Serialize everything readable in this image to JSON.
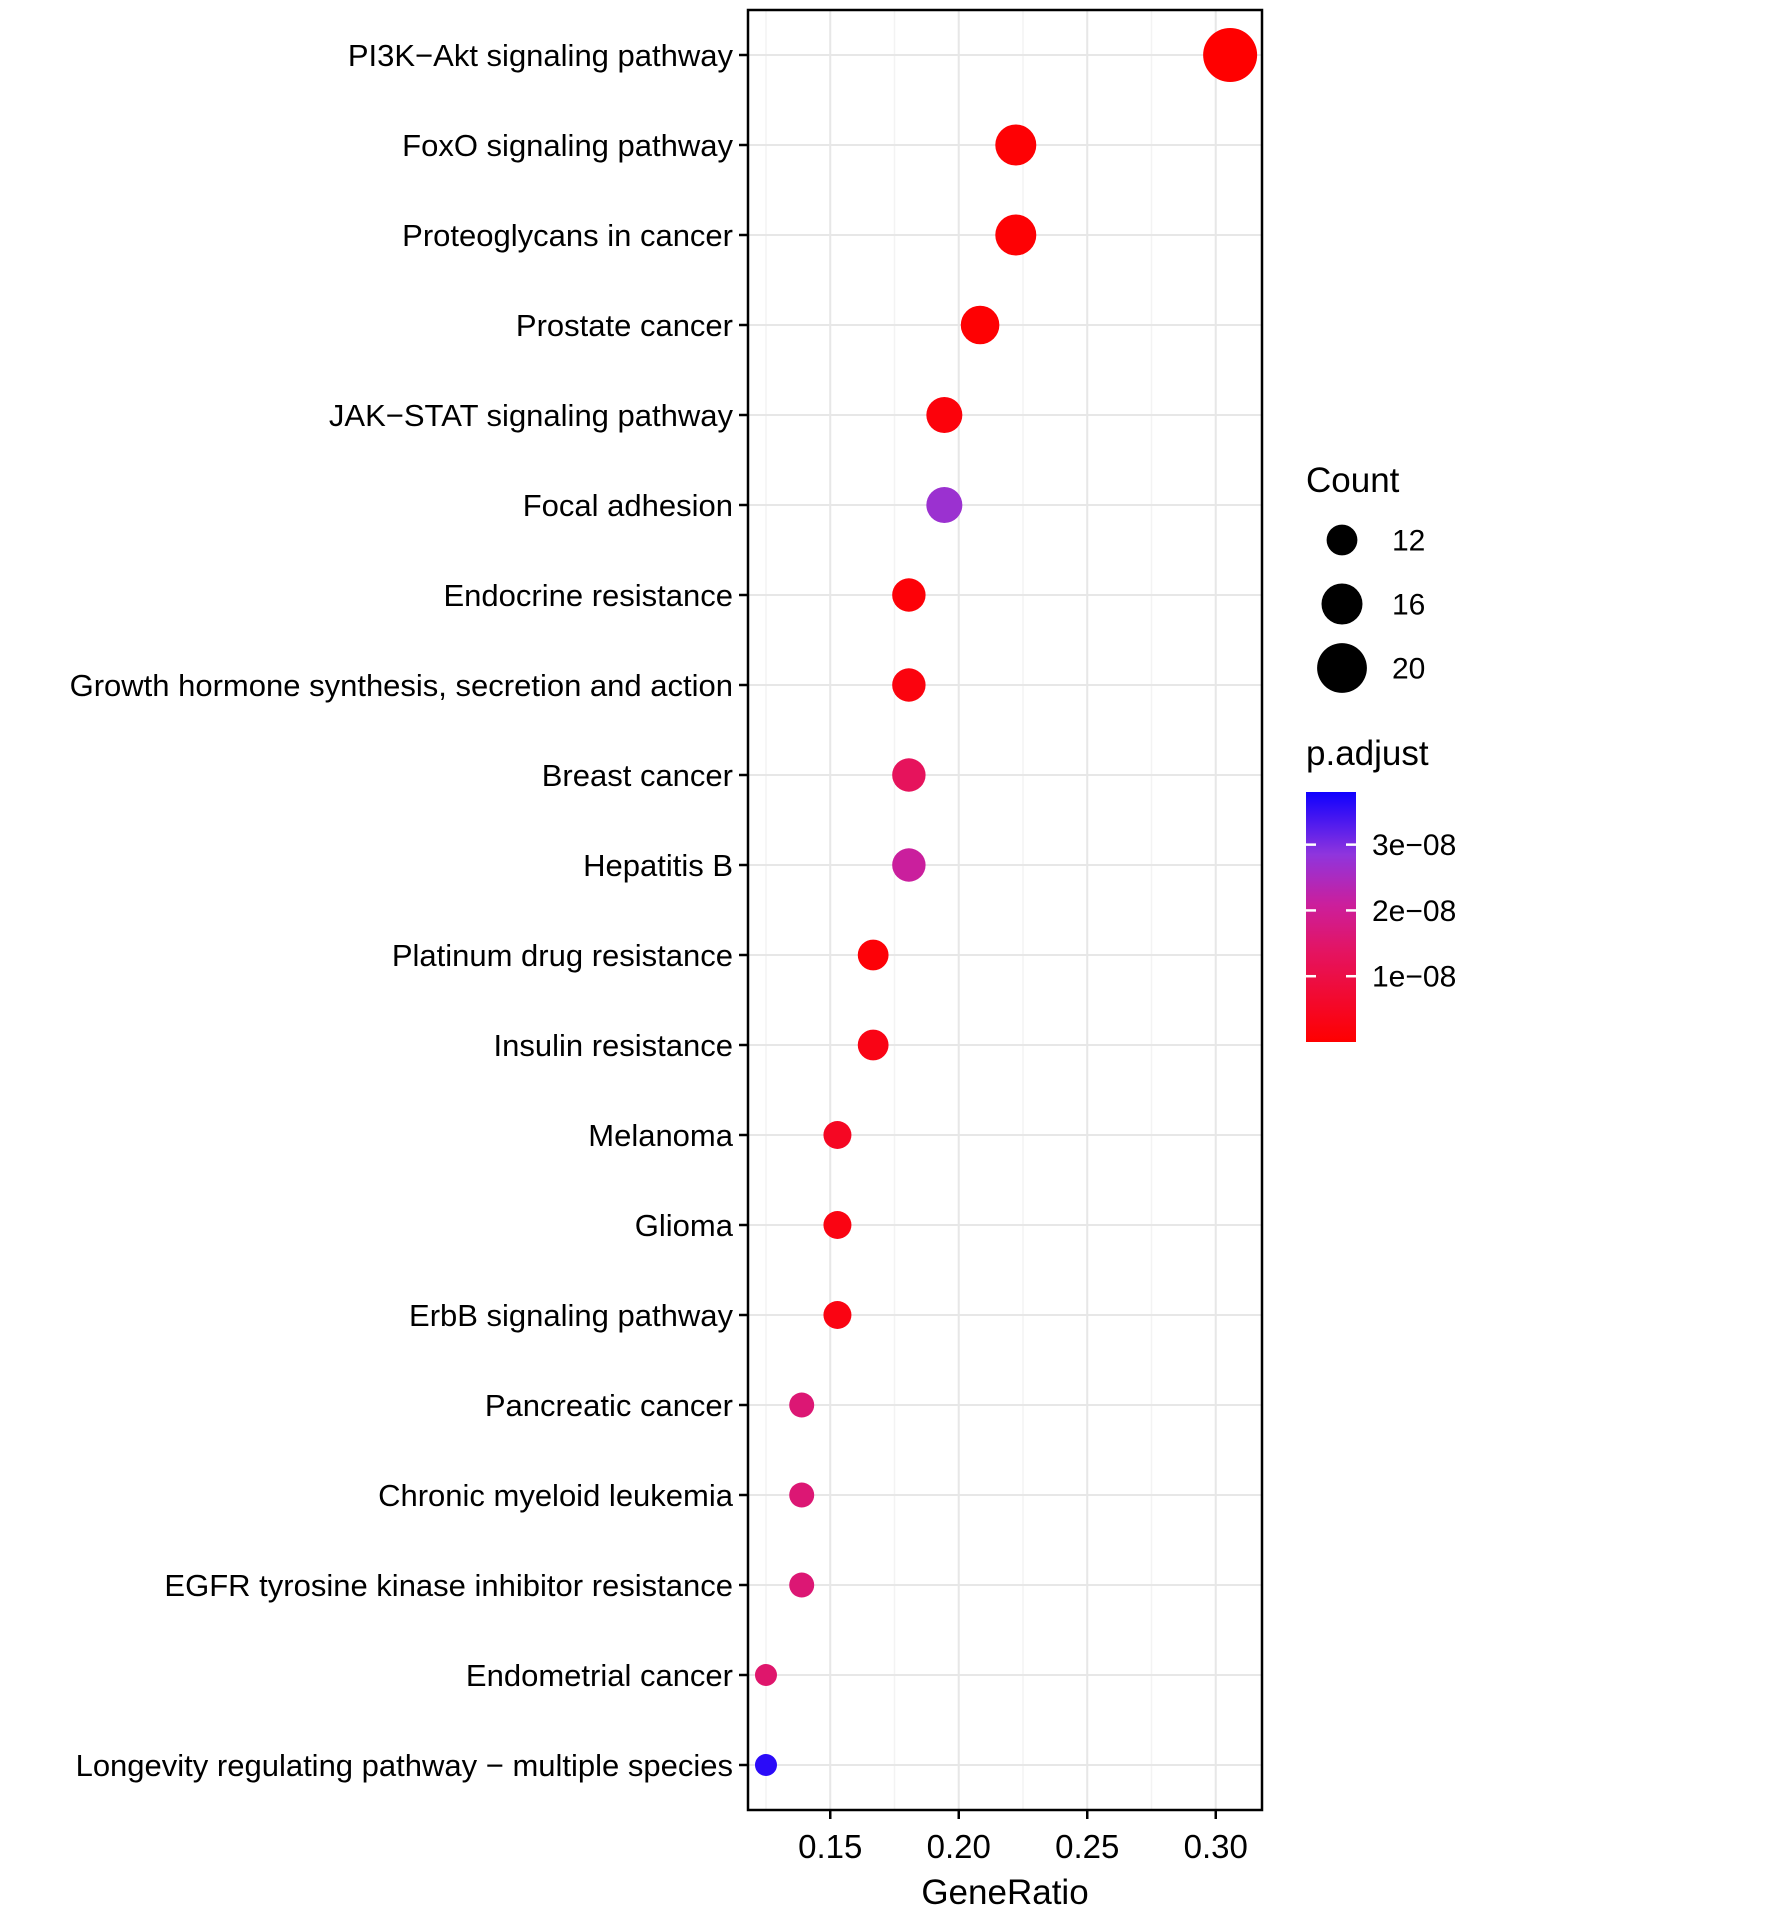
{
  "chart_data": {
    "type": "scatter",
    "title": "",
    "xlabel": "GeneRatio",
    "xlim": [
      0.118,
      0.318
    ],
    "x_ticks": [
      {
        "value": 0.15,
        "label": "0.15"
      },
      {
        "value": 0.2,
        "label": "0.20"
      },
      {
        "value": 0.25,
        "label": "0.25"
      },
      {
        "value": 0.3,
        "label": "0.30"
      }
    ],
    "x_minor_ticks": [
      0.125,
      0.175,
      0.225,
      0.275
    ],
    "points": [
      {
        "pathway": "PI3K−Akt signaling pathway",
        "gene_ratio": 0.3056,
        "count": 22,
        "p_adjust": 2e-12
      },
      {
        "pathway": "FoxO signaling pathway",
        "gene_ratio": 0.2222,
        "count": 16,
        "p_adjust": 5e-10
      },
      {
        "pathway": "Proteoglycans in cancer",
        "gene_ratio": 0.2222,
        "count": 16,
        "p_adjust": 6e-10
      },
      {
        "pathway": "Prostate cancer",
        "gene_ratio": 0.2083,
        "count": 15,
        "p_adjust": 4e-10
      },
      {
        "pathway": "JAK−STAT signaling pathway",
        "gene_ratio": 0.1944,
        "count": 14,
        "p_adjust": 1.5e-09
      },
      {
        "pathway": "Focal adhesion",
        "gene_ratio": 0.1944,
        "count": 14,
        "p_adjust": 2.7e-08
      },
      {
        "pathway": "Endocrine resistance",
        "gene_ratio": 0.1806,
        "count": 13,
        "p_adjust": 1e-09
      },
      {
        "pathway": "Growth hormone synthesis, secretion and action",
        "gene_ratio": 0.1806,
        "count": 13,
        "p_adjust": 2e-09
      },
      {
        "pathway": "Breast cancer",
        "gene_ratio": 0.1806,
        "count": 13,
        "p_adjust": 1.3e-08
      },
      {
        "pathway": "Hepatitis B",
        "gene_ratio": 0.1806,
        "count": 13,
        "p_adjust": 2.1e-08
      },
      {
        "pathway": "Platinum drug resistance",
        "gene_ratio": 0.1667,
        "count": 12,
        "p_adjust": 1e-09
      },
      {
        "pathway": "Insulin resistance",
        "gene_ratio": 0.1667,
        "count": 12,
        "p_adjust": 3e-09
      },
      {
        "pathway": "Melanoma",
        "gene_ratio": 0.1528,
        "count": 11,
        "p_adjust": 5e-09
      },
      {
        "pathway": "Glioma",
        "gene_ratio": 0.1528,
        "count": 11,
        "p_adjust": 2.5e-09
      },
      {
        "pathway": "ErbB signaling pathway",
        "gene_ratio": 0.1528,
        "count": 11,
        "p_adjust": 2.5e-09
      },
      {
        "pathway": "Pancreatic cancer",
        "gene_ratio": 0.1389,
        "count": 10,
        "p_adjust": 1.6e-08
      },
      {
        "pathway": "Chronic myeloid leukemia",
        "gene_ratio": 0.1389,
        "count": 10,
        "p_adjust": 1.6e-08
      },
      {
        "pathway": "EGFR tyrosine kinase inhibitor resistance",
        "gene_ratio": 0.1389,
        "count": 10,
        "p_adjust": 1.6e-08
      },
      {
        "pathway": "Endometrial cancer",
        "gene_ratio": 0.125,
        "count": 9,
        "p_adjust": 1.5e-08
      },
      {
        "pathway": "Longevity regulating pathway − multiple species",
        "gene_ratio": 0.125,
        "count": 9,
        "p_adjust": 3.6e-08
      }
    ],
    "size_legend": {
      "title": "Count",
      "entries": [
        {
          "count": 12,
          "label": "12"
        },
        {
          "count": 16,
          "label": "16"
        },
        {
          "count": 20,
          "label": "20"
        }
      ]
    },
    "color_legend": {
      "title": "p.adjust",
      "domain": [
        0,
        3.8e-08
      ],
      "ticks": [
        {
          "value": 3e-08,
          "label": "3e−08"
        },
        {
          "value": 2e-08,
          "label": "2e−08"
        },
        {
          "value": 1e-08,
          "label": "1e−08"
        }
      ],
      "gradient_stops": [
        [
          0,
          "#ff0000"
        ],
        [
          0.35,
          "#e5135e"
        ],
        [
          0.55,
          "#cb1f9c"
        ],
        [
          0.75,
          "#8f35dd"
        ],
        [
          1,
          "#1000ff"
        ]
      ]
    },
    "size_scale": {
      "count_domain": [
        9,
        22
      ],
      "radius_range": [
        11,
        27
      ]
    },
    "style": {
      "background": "#ffffff",
      "panel_border": "#000000",
      "grid_major": "#e7e7e7",
      "grid_minor": "#f3f3f3",
      "text_color": "#000000",
      "legend_dot_color": "#000000"
    }
  }
}
